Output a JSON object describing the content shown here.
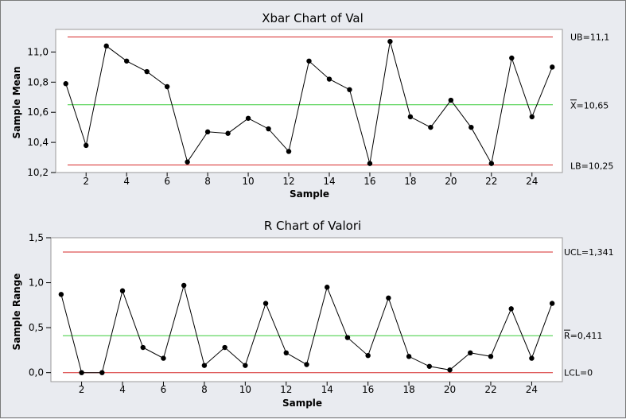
{
  "chart_data": [
    {
      "type": "line",
      "title": "Xbar Chart of Val",
      "xlabel": "Sample",
      "ylabel": "Sample Mean",
      "ylim": [
        10.2,
        11.15
      ],
      "xlim": [
        0.5,
        25.5
      ],
      "x_ticks": [
        2,
        4,
        6,
        8,
        10,
        12,
        14,
        16,
        18,
        20,
        22,
        24
      ],
      "y_ticks": [
        {
          "value": 10.2,
          "label": "10,2"
        },
        {
          "value": 10.4,
          "label": "10,4"
        },
        {
          "value": 10.6,
          "label": "10,6"
        },
        {
          "value": 10.8,
          "label": "10,8"
        },
        {
          "value": 11.0,
          "label": "11,0"
        }
      ],
      "x": [
        1,
        2,
        3,
        4,
        5,
        6,
        7,
        8,
        9,
        10,
        11,
        12,
        13,
        14,
        15,
        16,
        17,
        18,
        19,
        20,
        21,
        22,
        23,
        24,
        25
      ],
      "values": [
        10.79,
        10.38,
        11.04,
        10.94,
        10.87,
        10.77,
        10.27,
        10.47,
        10.46,
        10.56,
        10.49,
        10.34,
        10.94,
        10.82,
        10.75,
        10.26,
        11.07,
        10.57,
        10.5,
        10.68,
        10.5,
        10.26,
        10.96,
        10.57,
        10.9
      ],
      "limits": [
        {
          "role": "upper",
          "value": 11.1,
          "label": "UB=11,1",
          "color": "#d62828"
        },
        {
          "role": "center",
          "value": 10.65,
          "label": "X=10,65",
          "overbar": "X",
          "color": "#3ccc3c"
        },
        {
          "role": "lower",
          "value": 10.25,
          "label": "LB=10,25",
          "color": "#d62828"
        }
      ],
      "grid": false,
      "line_color": "#000000",
      "background": "#ffffff"
    },
    {
      "type": "line",
      "title": "R Chart of Valori",
      "xlabel": "Sample",
      "ylabel": "Sample Range",
      "ylim": [
        -0.1,
        1.5
      ],
      "xlim": [
        0.5,
        25.5
      ],
      "x_ticks": [
        2,
        4,
        6,
        8,
        10,
        12,
        14,
        16,
        18,
        20,
        22,
        24
      ],
      "y_ticks": [
        {
          "value": 0.0,
          "label": "0,0"
        },
        {
          "value": 0.5,
          "label": "0,5"
        },
        {
          "value": 1.0,
          "label": "1,0"
        },
        {
          "value": 1.5,
          "label": "1,5"
        }
      ],
      "x": [
        1,
        2,
        3,
        4,
        5,
        6,
        7,
        8,
        9,
        10,
        11,
        12,
        13,
        14,
        15,
        16,
        17,
        18,
        19,
        20,
        21,
        22,
        23,
        24,
        25
      ],
      "values": [
        0.87,
        0.0,
        0.0,
        0.91,
        0.28,
        0.16,
        0.97,
        0.08,
        0.28,
        0.08,
        0.77,
        0.22,
        0.09,
        0.95,
        0.39,
        0.19,
        0.83,
        0.18,
        0.07,
        0.03,
        0.22,
        0.18,
        0.71,
        0.16,
        0.77
      ],
      "limits": [
        {
          "role": "upper",
          "value": 1.341,
          "label": "UCL=1,341",
          "color": "#d62828"
        },
        {
          "role": "center",
          "value": 0.411,
          "label": "R=0,411",
          "overbar": "R",
          "color": "#3ccc3c"
        },
        {
          "role": "lower",
          "value": 0.0,
          "label": "LCL=0",
          "color": "#d62828"
        }
      ],
      "grid": false,
      "line_color": "#000000",
      "background": "#ffffff"
    }
  ]
}
